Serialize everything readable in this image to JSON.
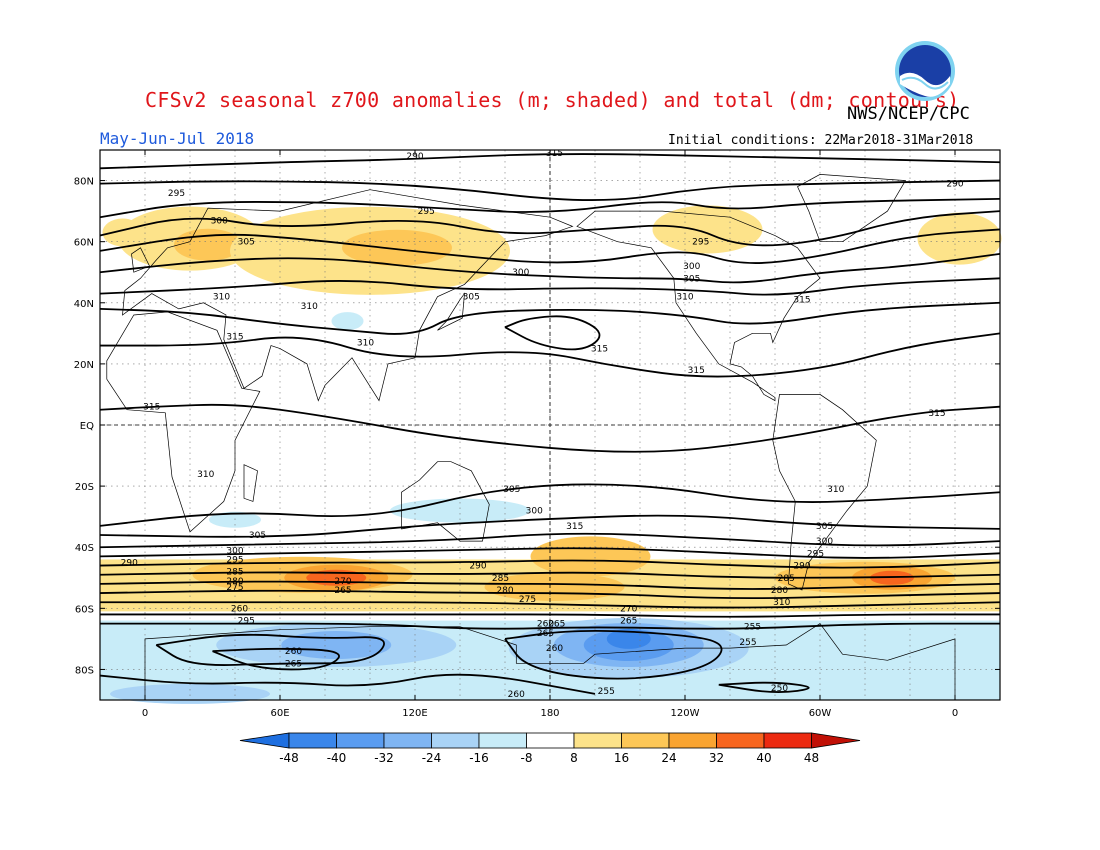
{
  "title": "CFSv2 seasonal z700 anomalies (m; shaded) and total (dm; contours)",
  "agency": "NWS/NCEP/CPC",
  "logo_text": "NOAA",
  "period": "May-Jun-Jul 2018",
  "initial_conditions": "Initial conditions: 22Mar2018-31Mar2018",
  "lat_labels": [
    "80N",
    "60N",
    "40N",
    "20N",
    "EQ",
    "20S",
    "40S",
    "60S",
    "80S"
  ],
  "lon_labels": [
    "0",
    "60E",
    "120E",
    "180",
    "120W",
    "60W",
    "0"
  ],
  "colorbar": {
    "labels": [
      "-48",
      "-40",
      "-32",
      "-24",
      "-16",
      "-8",
      "8",
      "16",
      "24",
      "32",
      "40",
      "48"
    ],
    "colors": [
      "#1e6fe0",
      "#3a86ea",
      "#5a9cf0",
      "#7fb5f3",
      "#a9d3f6",
      "#c8ecf8",
      "#ffffff",
      "#fde38a",
      "#fdc757",
      "#f9a431",
      "#f7651e",
      "#ec2a10",
      "#c11006"
    ]
  },
  "contour_labels": [
    {
      "text": "290",
      "lon": 120
    },
    {
      "text": "295",
      "lon": 15
    },
    {
      "text": "300",
      "lon": 35
    },
    {
      "text": "305",
      "lon": 45
    },
    {
      "text": "310",
      "lon": 20
    },
    {
      "text": "315",
      "lon": 30
    },
    {
      "text": "310",
      "lon": 75
    },
    {
      "text": "310",
      "lon": 95
    },
    {
      "text": "290",
      "lon": 355
    },
    {
      "text": "295",
      "lon": 125
    },
    {
      "text": "300",
      "lon": 165
    },
    {
      "text": "305",
      "lon": 145
    },
    {
      "text": "315",
      "lon": 185
    },
    {
      "text": "295",
      "lon": 245
    },
    {
      "text": "300",
      "lon": 240
    },
    {
      "text": "305",
      "lon": 238
    },
    {
      "text": "310",
      "lon": 233
    },
    {
      "text": "315",
      "lon": 270
    },
    {
      "text": "315",
      "lon": 175
    },
    {
      "text": "315",
      "lon": 340
    },
    {
      "text": "315",
      "lon": 5
    },
    {
      "text": "315",
      "lon": 29
    },
    {
      "text": "310",
      "lon": 160
    },
    {
      "text": "305",
      "lon": 173
    },
    {
      "text": "300",
      "lon": 182
    },
    {
      "text": "315",
      "lon": 308
    },
    {
      "text": "310",
      "lon": 301
    },
    {
      "text": "305",
      "lon": 301
    },
    {
      "text": "300",
      "lon": 289
    },
    {
      "text": "295",
      "lon": 284
    },
    {
      "text": "290",
      "lon": 270
    },
    {
      "text": "285",
      "lon": 272
    },
    {
      "text": "280",
      "lon": 266
    },
    {
      "text": "310",
      "lon": 40
    },
    {
      "text": "305",
      "lon": 40
    },
    {
      "text": "300",
      "lon": 40
    },
    {
      "text": "295",
      "lon": -5
    },
    {
      "text": "290",
      "lon": 40
    },
    {
      "text": "285",
      "lon": 40
    },
    {
      "text": "280",
      "lon": 40
    },
    {
      "text": "275",
      "lon": 90
    },
    {
      "text": "270",
      "lon": 90
    },
    {
      "text": "265",
      "lon": 40
    },
    {
      "text": "260",
      "lon": 45
    },
    {
      "text": "295",
      "lon": 150
    },
    {
      "text": "290",
      "lon": 160
    },
    {
      "text": "285",
      "lon": 160
    },
    {
      "text": "280",
      "lon": 170
    },
    {
      "text": "275",
      "lon": 213
    },
    {
      "text": "270",
      "lon": 213
    },
    {
      "text": "265",
      "lon": 178
    },
    {
      "text": "260",
      "lon": 178
    },
    {
      "text": "265",
      "lon": 270
    },
    {
      "text": "260",
      "lon": 268
    },
    {
      "text": "255",
      "lon": 180
    },
    {
      "text": "255",
      "lon": 203
    },
    {
      "text": "255",
      "lon": 282
    },
    {
      "text": "265",
      "lon": 66
    },
    {
      "text": "260",
      "lon": 66
    },
    {
      "text": "250",
      "lon": 70
    },
    {
      "text": "265",
      "lon": 74
    },
    {
      "text": "260",
      "lon": 260
    }
  ]
}
